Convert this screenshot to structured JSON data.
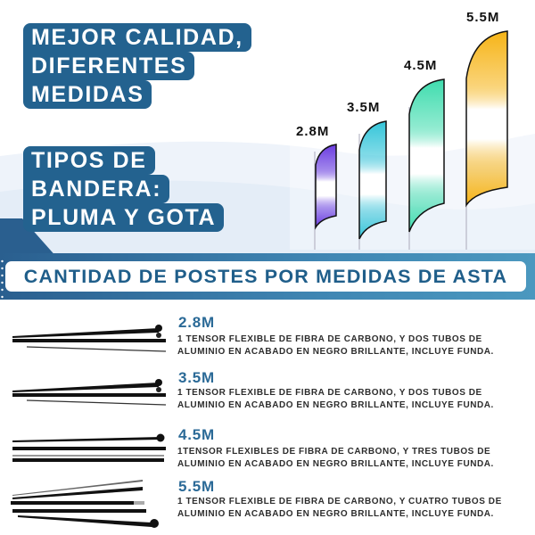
{
  "headline1": {
    "lines": [
      "MEJOR CALIDAD,",
      "DIFERENTES",
      "MEDIDAS"
    ]
  },
  "headline2": {
    "lines": [
      "TIPOS DE",
      "BANDERA:",
      "PLUMA Y GOTA"
    ]
  },
  "flags": [
    {
      "label": "2.8M",
      "color": "#6a3be0"
    },
    {
      "label": "3.5M",
      "color": "#34c5d9"
    },
    {
      "label": "4.5M",
      "color": "#3fdcae"
    },
    {
      "label": "5.5M",
      "color": "#f6b417"
    }
  ],
  "banner": {
    "title": "CANTIDAD DE POSTES POR MEDIDAS DE ASTA"
  },
  "sizes": [
    {
      "title": "2.8M",
      "line1": "1 TENSOR FLEXIBLE DE FIBRA DE CARBONO, Y DOS TUBOS DE",
      "line2": "ALUMINIO EN ACABADO EN NEGRO BRILLANTE, INCLUYE FUNDA."
    },
    {
      "title": "3.5M",
      "line1": "1 TENSOR FLEXIBLE DE FIBRA DE CARBONO, Y DOS TUBOS DE",
      "line2": "ALUMINIO EN ACABADO EN NEGRO BRILLANTE, INCLUYE FUNDA."
    },
    {
      "title": "4.5M",
      "line1": "1TENSOR FLEXIBLES DE FIBRA DE CARBONO, Y TRES TUBOS DE",
      "line2": "ALUMINIO EN ACABADO EN NEGRO BRILLANTE, INCLUYE FUNDA."
    },
    {
      "title": "5.5M",
      "line1": "1 TENSOR FLEXIBLE DE FIBRA DE CARBONO, Y CUATRO TUBOS DE",
      "line2": "ALUMINIO EN ACABADO EN NEGRO BRILLANTE, INCLUYE FUNDA."
    }
  ],
  "colors": {
    "primary": "#23628f",
    "title": "#2b6a97"
  }
}
